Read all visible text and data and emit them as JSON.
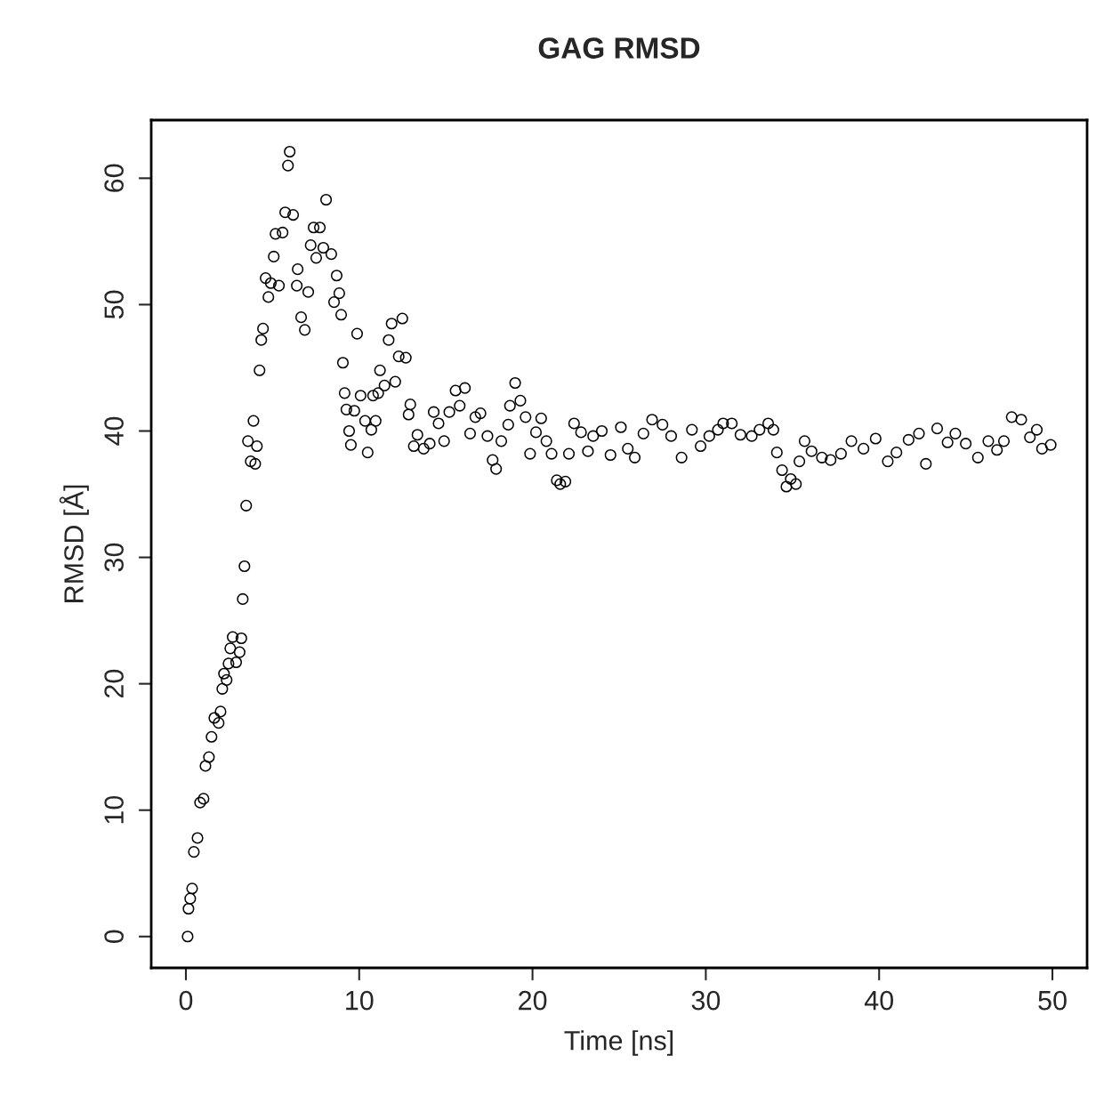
{
  "chart_data": {
    "type": "scatter",
    "title": "GAG RMSD",
    "xlabel": "Time [ns]",
    "ylabel": "RMSD [Å]",
    "xlim": [
      -2,
      52
    ],
    "ylim": [
      -2.48,
      64.6
    ],
    "xticks": [
      0,
      10,
      20,
      30,
      40,
      50
    ],
    "yticks": [
      0,
      10,
      20,
      30,
      40,
      50,
      60
    ],
    "grid": false,
    "marker": "circle",
    "series": [
      {
        "color": "#000000",
        "x": [
          0.1,
          0.15,
          0.25,
          0.36,
          0.46,
          0.67,
          0.82,
          1.02,
          1.13,
          1.33,
          1.48,
          1.64,
          1.89,
          2.0,
          2.1,
          2.2,
          2.35,
          2.46,
          2.56,
          2.7,
          2.9,
          3.1,
          3.2,
          3.28,
          3.38,
          3.48,
          3.58,
          3.74,
          3.9,
          4.0,
          4.1,
          4.25,
          4.35,
          4.45,
          4.6,
          4.76,
          4.9,
          5.07,
          5.17,
          5.37,
          5.58,
          5.73,
          5.89,
          5.99,
          6.19,
          6.4,
          6.45,
          6.65,
          6.86,
          7.06,
          7.2,
          7.37,
          7.52,
          7.73,
          7.93,
          8.09,
          8.39,
          8.55,
          8.7,
          8.85,
          8.96,
          9.06,
          9.16,
          9.26,
          9.42,
          9.52,
          9.72,
          9.88,
          10.08,
          10.34,
          10.49,
          10.7,
          10.8,
          10.95,
          11.1,
          11.2,
          11.46,
          11.7,
          11.87,
          12.08,
          12.28,
          12.49,
          12.69,
          12.85,
          12.95,
          13.15,
          13.36,
          13.72,
          14.07,
          14.3,
          14.58,
          14.9,
          15.2,
          15.56,
          15.8,
          16.1,
          16.4,
          16.7,
          17.0,
          17.4,
          17.7,
          17.9,
          18.2,
          18.6,
          18.7,
          19.0,
          19.3,
          19.6,
          19.86,
          20.2,
          20.5,
          20.8,
          21.1,
          21.4,
          21.6,
          21.9,
          22.1,
          22.4,
          22.8,
          23.2,
          23.5,
          24.0,
          24.5,
          25.1,
          25.5,
          25.9,
          26.4,
          26.9,
          27.5,
          28.0,
          28.6,
          29.2,
          29.7,
          30.2,
          30.7,
          31.0,
          31.5,
          32.0,
          32.65,
          33.1,
          33.6,
          33.9,
          34.1,
          34.4,
          34.65,
          34.9,
          35.2,
          35.4,
          35.7,
          36.1,
          36.7,
          37.2,
          37.8,
          38.4,
          39.1,
          39.8,
          40.5,
          41.0,
          41.7,
          42.3,
          42.7,
          43.35,
          43.95,
          44.4,
          45.0,
          45.7,
          46.3,
          46.8,
          47.2,
          47.65,
          48.2,
          48.7,
          49.1,
          49.4,
          49.9
        ],
        "values": [
          0.0,
          2.2,
          3.0,
          3.8,
          6.7,
          7.8,
          10.6,
          10.9,
          13.5,
          14.2,
          15.8,
          17.3,
          16.9,
          17.8,
          19.6,
          20.8,
          20.3,
          21.6,
          22.8,
          23.7,
          21.7,
          22.5,
          23.6,
          26.7,
          29.3,
          34.1,
          39.2,
          37.6,
          40.8,
          37.4,
          38.8,
          44.8,
          47.2,
          48.1,
          52.1,
          50.6,
          51.7,
          53.8,
          55.6,
          51.5,
          55.7,
          57.3,
          61.0,
          62.1,
          57.1,
          51.5,
          52.8,
          49.0,
          48.0,
          51.0,
          54.7,
          56.1,
          53.7,
          56.1,
          54.5,
          58.3,
          54.0,
          50.2,
          52.3,
          50.9,
          49.2,
          45.4,
          43.0,
          41.7,
          40.0,
          38.9,
          41.6,
          47.7,
          42.8,
          40.8,
          38.3,
          40.1,
          42.8,
          40.8,
          43.0,
          44.8,
          43.6,
          47.2,
          48.5,
          43.9,
          45.9,
          48.9,
          45.8,
          41.3,
          42.1,
          38.8,
          39.7,
          38.6,
          39.0,
          41.5,
          40.6,
          39.2,
          41.5,
          43.2,
          42.0,
          43.4,
          39.8,
          41.1,
          41.4,
          39.6,
          37.7,
          37.0,
          39.2,
          40.5,
          42.0,
          43.8,
          42.4,
          41.1,
          38.2,
          39.9,
          41.0,
          39.2,
          38.2,
          36.1,
          35.8,
          36.0,
          38.2,
          40.6,
          39.9,
          38.4,
          39.6,
          40.0,
          38.1,
          40.3,
          38.6,
          37.9,
          39.8,
          40.9,
          40.5,
          39.6,
          37.9,
          40.1,
          38.8,
          39.6,
          40.1,
          40.6,
          40.6,
          39.7,
          39.6,
          40.1,
          40.6,
          40.1,
          38.3,
          36.9,
          35.6,
          36.2,
          35.8,
          37.6,
          39.2,
          38.4,
          37.9,
          37.7,
          38.2,
          39.2,
          38.6,
          39.4,
          37.6,
          38.3,
          39.3,
          39.8,
          37.4,
          40.2,
          39.1,
          39.8,
          39.0,
          37.9,
          39.2,
          38.5,
          39.2,
          41.1,
          40.9,
          39.5,
          40.1,
          38.6,
          38.9
        ]
      }
    ]
  }
}
